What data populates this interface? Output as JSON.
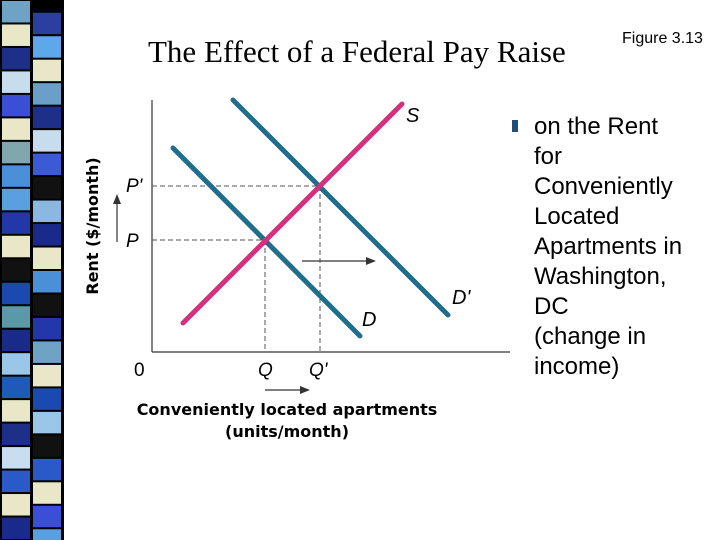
{
  "slide": {
    "title": "The Effect of a Federal Pay Raise",
    "figure_label": "Figure 3.13",
    "bullet_lines": [
      "on the Rent",
      "for",
      "Conveniently",
      "Located",
      "Apartments in",
      "Washington,",
      "DC",
      "(change in",
      "income)"
    ]
  },
  "diagram": {
    "y_axis_label": "Rent ($/month)",
    "x_axis_label_line1": "Conveniently located apartments",
    "x_axis_label_line2": "(units/month)",
    "origin_label": "0",
    "supply_label": "S",
    "demand_label": "D",
    "new_demand_label": "D'",
    "price_label": "P",
    "new_price_label": "P'",
    "quantity_label": "Q",
    "new_quantity_label": "Q'",
    "colors": {
      "supply": "#d4307f",
      "demand": "#1f6e8c",
      "text": "#000000"
    }
  }
}
